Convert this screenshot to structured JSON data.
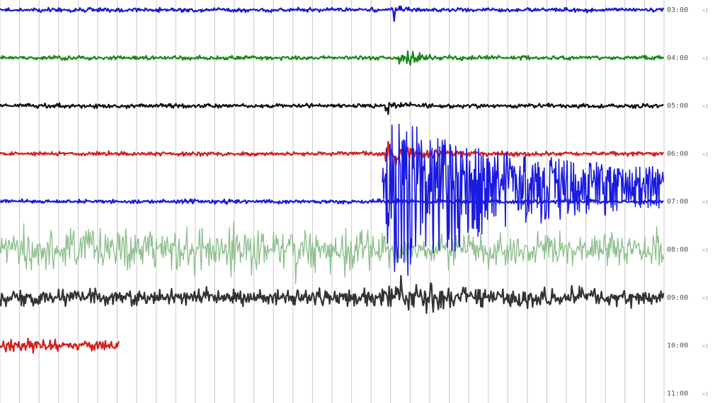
{
  "chart_data": {
    "type": "line",
    "title": "",
    "xlabel": "",
    "ylabel": "",
    "grid": true,
    "legend": "none",
    "y_tick_labels": [
      "03:00",
      "04:00",
      "05:00",
      "06:00",
      "07:00",
      "08:00",
      "09:00",
      "10:00",
      "11:00"
    ],
    "y_tick_suffix": "+1",
    "vertical_gridlines": 34,
    "series": [
      {
        "row": "03:00",
        "color": "#1a1ad0",
        "amplitude": 3,
        "span": [
          0,
          1
        ],
        "event": {
          "start": 0.59,
          "peak": 14,
          "decay": 0.01
        }
      },
      {
        "row": "04:00",
        "color": "#1a8a1a",
        "amplitude": 3,
        "span": [
          0,
          1
        ],
        "event": {
          "start": 0.6,
          "peak": 18,
          "decay": 0.02
        }
      },
      {
        "row": "05:00",
        "color": "#111111",
        "amplitude": 3,
        "span": [
          0,
          1
        ],
        "event": {
          "start": 0.58,
          "peak": 8,
          "decay": 0.02
        }
      },
      {
        "row": "06:00",
        "color": "#d42020",
        "amplitude": 3,
        "span": [
          0,
          1
        ],
        "event": {
          "start": 0.58,
          "peak": 18,
          "decay": 0.05
        }
      },
      {
        "row": "07:00",
        "color": "#1a1ae0",
        "amplitude": 3,
        "span": [
          0,
          1
        ],
        "event": {
          "start": 0.575,
          "peak": 120,
          "decay": 0.18,
          "floor": 22
        }
      },
      {
        "row": "08:00",
        "color": "#8fbf8f",
        "amplitude": 38,
        "span": [
          0,
          1
        ],
        "event": null
      },
      {
        "row": "09:00",
        "color": "#333333",
        "amplitude": 12,
        "span": [
          0,
          1
        ],
        "event": {
          "start": 0.58,
          "peak": 20,
          "decay": 0.1
        }
      },
      {
        "row": "10:00",
        "color": "#d42020",
        "amplitude": 8,
        "span": [
          0,
          0.18
        ],
        "event": null
      }
    ],
    "colors": {
      "background": "#ffffff",
      "grid": "#c8c8c8",
      "event_overlay": "#1a1ae0"
    }
  }
}
